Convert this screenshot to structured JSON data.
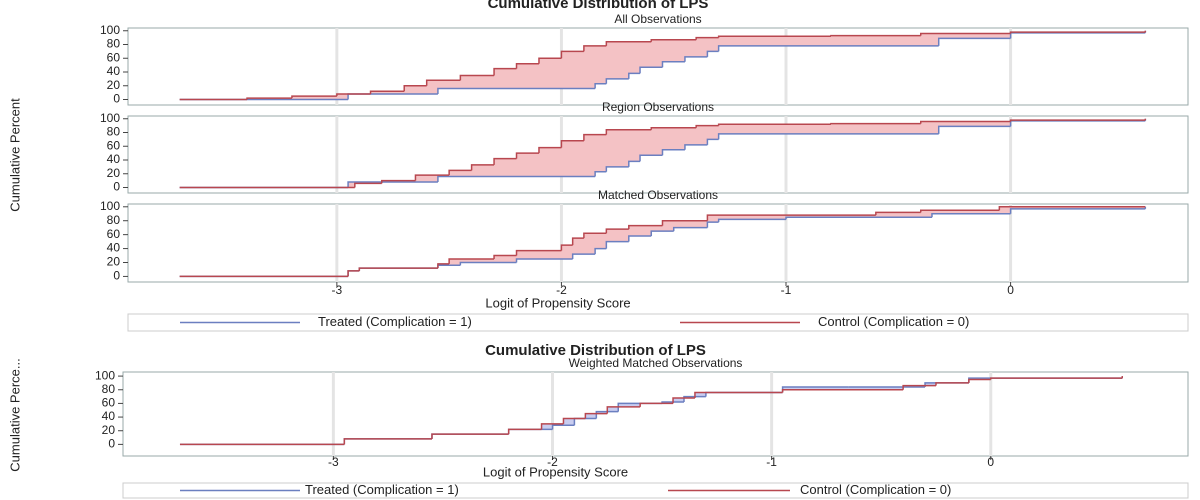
{
  "chart_data": [
    {
      "type": "step",
      "title": "Cumulative Distribution of LPS",
      "xlabel": "Logit of Propensity Score",
      "ylabel": "Cumulative Percent",
      "xlim": [
        -3.93,
        0.79
      ],
      "xticks": [
        -3,
        -2,
        -1,
        0
      ],
      "ylim": [
        -8,
        104
      ],
      "yticks": [
        0,
        20,
        40,
        60,
        80,
        100
      ],
      "grid": true,
      "legend": "bottom",
      "fill_color": "#f4c2c5",
      "series": [
        {
          "name": "Treated (Complication = 1)",
          "color": "#6b7fc0"
        },
        {
          "name": "Control (Complication = 0)",
          "color": "#b8474f"
        }
      ],
      "panels": [
        {
          "title": "All Observations",
          "data": [
            {
              "x": [
                -3.7,
                -2.95,
                -2.55,
                -1.85,
                -1.8,
                -1.7,
                -1.65,
                -1.55,
                -1.45,
                -1.35,
                -1.3,
                -0.32,
                0,
                0.6
              ],
              "values": [
                0,
                8,
                16,
                23,
                30,
                38,
                47,
                55,
                62,
                70,
                78,
                89,
                97,
                100
              ]
            },
            {
              "x": [
                -3.7,
                -3.4,
                -3.2,
                -3.0,
                -2.85,
                -2.7,
                -2.6,
                -2.45,
                -2.3,
                -2.2,
                -2.1,
                -2.0,
                -1.9,
                -1.8,
                -1.6,
                -1.4,
                -1.3,
                -0.8,
                -0.4,
                0,
                0.6
              ],
              "values": [
                0,
                2,
                5,
                8,
                12,
                20,
                28,
                35,
                45,
                52,
                60,
                70,
                78,
                84,
                87,
                90,
                92,
                93,
                96,
                98,
                100
              ]
            }
          ]
        },
        {
          "title": "Region Observations",
          "data": [
            {
              "x": [
                -3.7,
                -2.95,
                -2.55,
                -1.85,
                -1.8,
                -1.7,
                -1.65,
                -1.55,
                -1.45,
                -1.35,
                -1.3,
                -0.32,
                0,
                0.6
              ],
              "values": [
                0,
                8,
                16,
                23,
                30,
                38,
                47,
                55,
                62,
                70,
                78,
                89,
                97,
                100
              ]
            },
            {
              "x": [
                -3.7,
                -2.92,
                -2.8,
                -2.65,
                -2.5,
                -2.4,
                -2.3,
                -2.2,
                -2.1,
                -2.0,
                -1.9,
                -1.8,
                -1.6,
                -1.4,
                -1.3,
                -0.8,
                -0.4,
                0,
                0.6
              ],
              "values": [
                0,
                6,
                10,
                18,
                25,
                33,
                42,
                50,
                58,
                68,
                77,
                84,
                87,
                90,
                92,
                93,
                96,
                98,
                100
              ]
            }
          ]
        },
        {
          "title": "Matched Observations",
          "data": [
            {
              "x": [
                -3.7,
                -2.95,
                -2.9,
                -2.55,
                -2.45,
                -2.2,
                -1.95,
                -1.85,
                -1.8,
                -1.7,
                -1.6,
                -1.5,
                -1.35,
                -1.3,
                -1.0,
                -0.35,
                0,
                0.6
              ],
              "values": [
                0,
                8,
                12,
                16,
                20,
                25,
                32,
                40,
                50,
                58,
                65,
                70,
                78,
                82,
                85,
                90,
                97,
                100
              ]
            },
            {
              "x": [
                -3.7,
                -2.95,
                -2.9,
                -2.55,
                -2.5,
                -2.3,
                -2.2,
                -2.0,
                -1.95,
                -1.9,
                -1.8,
                -1.7,
                -1.55,
                -1.35,
                -0.6,
                -0.4,
                -0.05,
                0.6
              ],
              "values": [
                0,
                8,
                12,
                18,
                25,
                30,
                37,
                45,
                55,
                62,
                68,
                73,
                80,
                88,
                92,
                95,
                100,
                100
              ]
            }
          ]
        }
      ]
    },
    {
      "type": "step",
      "title": "Cumulative Distribution of LPS",
      "xlabel": "Logit of Propensity Score",
      "ylabel": "Cumulative Perce...",
      "xlim": [
        -3.96,
        0.9
      ],
      "xticks": [
        -3,
        -2,
        -1,
        0
      ],
      "ylim": [
        -17,
        106
      ],
      "yticks": [
        0,
        20,
        40,
        60,
        80,
        100
      ],
      "grid": true,
      "legend": "bottom",
      "fill_color": "#c9cdf0",
      "series": [
        {
          "name": "Treated (Complication = 1)",
          "color": "#6b7fc0"
        },
        {
          "name": "Control (Complication = 0)",
          "color": "#b8474f"
        }
      ],
      "panels": [
        {
          "title": "Weighted Matched Observations",
          "data": [
            {
              "x": [
                -3.7,
                -2.95,
                -2.55,
                -2.2,
                -2.0,
                -1.9,
                -1.8,
                -1.7,
                -1.5,
                -1.4,
                -1.3,
                -0.95,
                -0.65,
                -0.3,
                -0.1,
                0,
                0.6
              ],
              "values": [
                0,
                8,
                15,
                22,
                28,
                38,
                48,
                60,
                62,
                70,
                76,
                84,
                84,
                90,
                97,
                97,
                100
              ]
            },
            {
              "x": [
                -3.7,
                -2.95,
                -2.55,
                -2.2,
                -2.05,
                -1.95,
                -1.85,
                -1.75,
                -1.6,
                -1.45,
                -1.35,
                -0.95,
                -0.4,
                -0.25,
                -0.1,
                0,
                0.6
              ],
              "values": [
                0,
                8,
                15,
                22,
                30,
                38,
                45,
                55,
                60,
                68,
                76,
                80,
                86,
                90,
                95,
                97,
                100
              ]
            }
          ]
        }
      ]
    }
  ]
}
